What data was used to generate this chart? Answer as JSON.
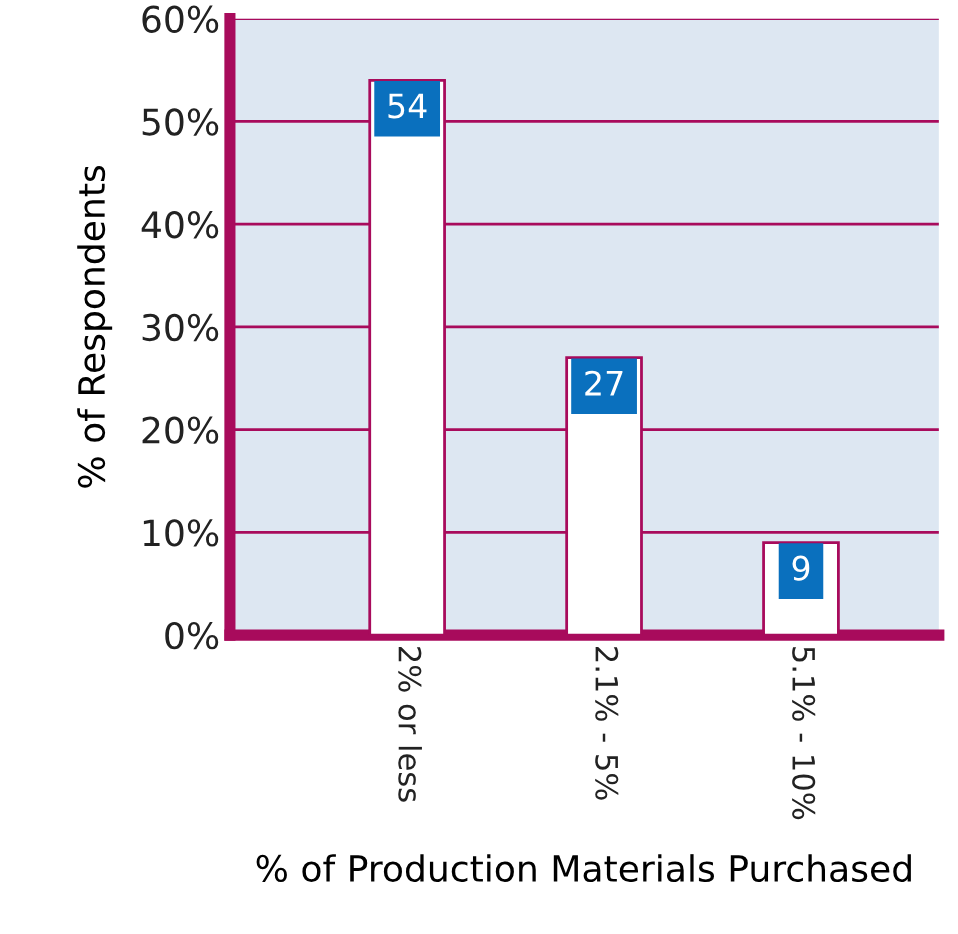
{
  "chart_data": {
    "type": "bar",
    "xlabel": "% of Production Materials Purchased",
    "ylabel": "% of Respondents",
    "categories": [
      "2% or less",
      "2.1% - 5%",
      "5.1% - 10%"
    ],
    "values": [
      54,
      27,
      9
    ],
    "color": "#ffffff",
    "ylim": [
      0,
      60
    ],
    "yticks": [
      {
        "value": 0,
        "label": "0%"
      },
      {
        "value": 10,
        "label": "10%"
      },
      {
        "value": 20,
        "label": "20%"
      },
      {
        "value": 30,
        "label": "30%"
      },
      {
        "value": 40,
        "label": "40%"
      },
      {
        "value": 50,
        "label": "50%"
      },
      {
        "value": 60,
        "label": "60%"
      }
    ],
    "grid": "y",
    "data_labels": true
  }
}
